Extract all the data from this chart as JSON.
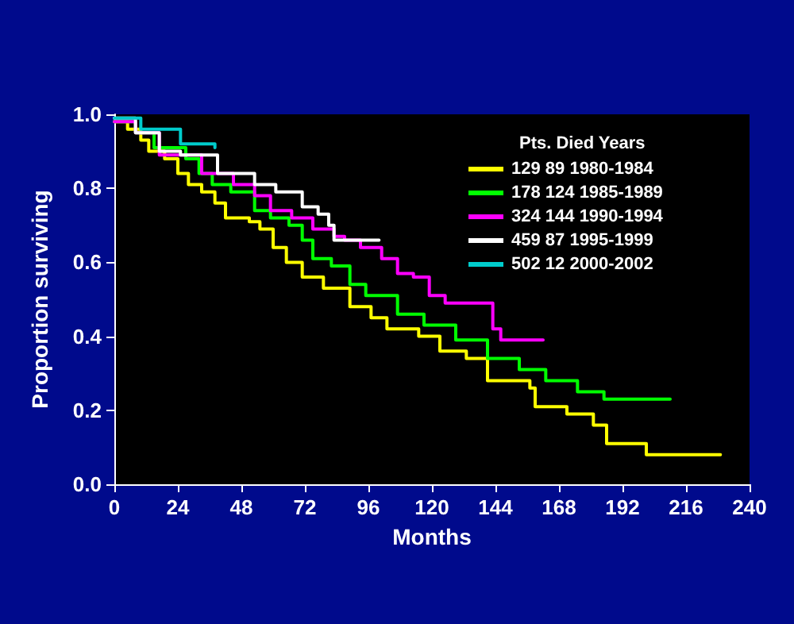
{
  "chart_data": {
    "type": "step",
    "xlabel": "Months",
    "ylabel": "Proportion surviving",
    "legend_title": "Pts. Died Years",
    "legend": "top right",
    "grid": false,
    "marker": "none",
    "line_style": "solid",
    "xlim": [
      0,
      240
    ],
    "xticks": [
      0,
      24,
      48,
      72,
      96,
      120,
      144,
      168,
      192,
      216,
      240
    ],
    "ylim": [
      0,
      1
    ],
    "yticks": [
      {
        "value": 0,
        "label": "0.0"
      },
      {
        "value": 0.2,
        "label": "0.2"
      },
      {
        "value": 0.4,
        "label": "0.4"
      },
      {
        "value": 0.6,
        "label": "0.6"
      },
      {
        "value": 0.8,
        "label": "0.8"
      },
      {
        "value": 1,
        "label": "1.0"
      }
    ],
    "series": [
      {
        "name": "129 89 1980-1984",
        "color": "#ffff00",
        "x": [
          0,
          5,
          10,
          13,
          19,
          24,
          28,
          33,
          38,
          42,
          51,
          55,
          60,
          65,
          71,
          79,
          89,
          97,
          103,
          115,
          123,
          133,
          141,
          157,
          159,
          171,
          181,
          186,
          200,
          201,
          229
        ],
        "values": [
          0.98,
          0.96,
          0.93,
          0.9,
          0.88,
          0.84,
          0.81,
          0.79,
          0.76,
          0.72,
          0.71,
          0.69,
          0.64,
          0.6,
          0.56,
          0.53,
          0.48,
          0.45,
          0.42,
          0.4,
          0.36,
          0.34,
          0.28,
          0.26,
          0.21,
          0.19,
          0.16,
          0.11,
          0.11,
          0.08,
          0.08
        ]
      },
      {
        "name": "178 124 1985-1989",
        "color": "#00ff00",
        "x": [
          0,
          8,
          15,
          27,
          32,
          37,
          44,
          53,
          59,
          66,
          71,
          75,
          82,
          89,
          95,
          107,
          117,
          129,
          141,
          153,
          163,
          175,
          185,
          210
        ],
        "values": [
          0.98,
          0.95,
          0.91,
          0.88,
          0.84,
          0.81,
          0.79,
          0.74,
          0.72,
          0.7,
          0.66,
          0.61,
          0.59,
          0.54,
          0.51,
          0.46,
          0.43,
          0.39,
          0.34,
          0.31,
          0.28,
          0.25,
          0.23,
          0.23
        ]
      },
      {
        "name": "324 144 1990-1994",
        "color": "#ff00ff",
        "x": [
          0,
          8,
          17,
          33,
          45,
          53,
          59,
          67,
          75,
          83,
          87,
          93,
          101,
          107,
          113,
          119,
          125,
          139,
          143,
          146,
          162
        ],
        "values": [
          0.98,
          0.95,
          0.89,
          0.84,
          0.81,
          0.78,
          0.74,
          0.72,
          0.69,
          0.67,
          0.66,
          0.64,
          0.61,
          0.57,
          0.56,
          0.51,
          0.49,
          0.49,
          0.42,
          0.39,
          0.39
        ]
      },
      {
        "name": "459 87 1995-1999",
        "color": "#ffffff",
        "x": [
          0,
          8,
          17,
          25,
          39,
          53,
          61,
          71,
          77,
          81,
          83,
          100
        ],
        "values": [
          0.99,
          0.95,
          0.9,
          0.89,
          0.84,
          0.81,
          0.79,
          0.75,
          0.73,
          0.7,
          0.66,
          0.66
        ]
      },
      {
        "name": "502 12 2000-2002",
        "color": "#00cccc",
        "x": [
          0,
          10,
          25,
          38
        ],
        "values": [
          0.99,
          0.96,
          0.92,
          0.91
        ]
      }
    ]
  }
}
